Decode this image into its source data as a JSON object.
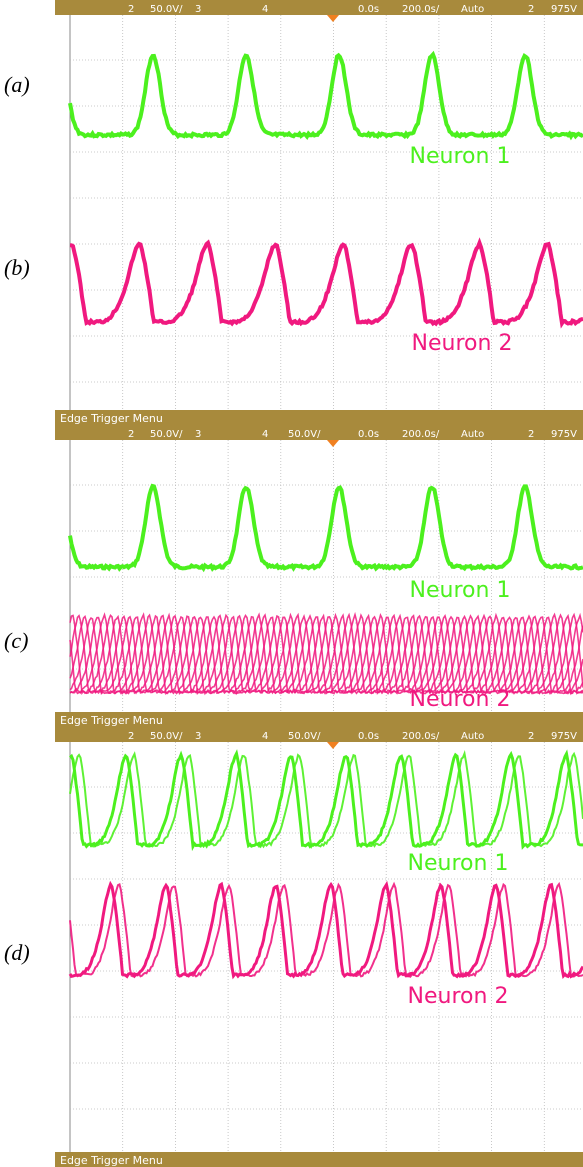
{
  "panel_labels": [
    "(a)",
    "(b)",
    "(c)",
    "(d)"
  ],
  "screens": [
    {
      "status": [
        "2",
        "50.0V/",
        "3",
        "4",
        "0.0s",
        "200.0s/",
        "Auto",
        "2",
        "975V"
      ],
      "trace_labels": [
        "Neuron 1",
        "Neuron 2"
      ],
      "menu": "Edge Trigger Menu"
    },
    {
      "status": [
        "2",
        "50.0V/",
        "3",
        "4",
        "50.0V/",
        "0.0s",
        "200.0s/",
        "Auto",
        "2",
        "975V"
      ],
      "trace_labels": [
        "Neuron 1",
        "Neuron 2"
      ],
      "menu": "Edge Trigger Menu"
    },
    {
      "status": [
        "2",
        "50.0V/",
        "3",
        "4",
        "50.0V/",
        "0.0s",
        "200.0s/",
        "Auto",
        "2",
        "975V"
      ],
      "trace_labels": [
        "Neuron 1",
        "Neuron 2"
      ],
      "menu": "Edge Trigger Menu"
    }
  ]
}
